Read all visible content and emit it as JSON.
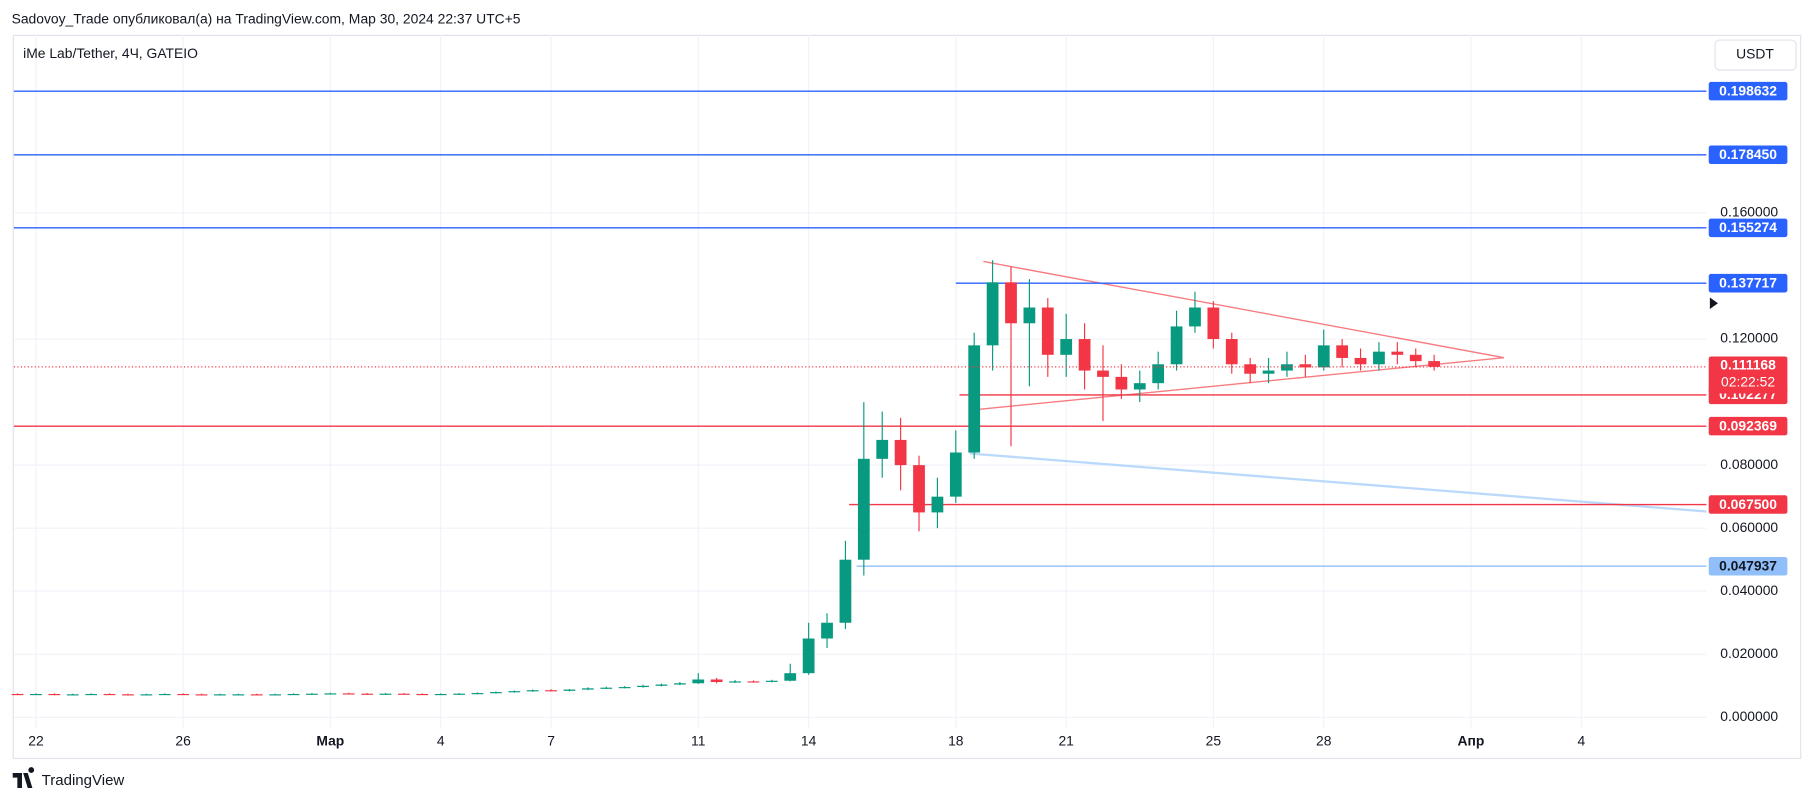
{
  "header": {
    "text": "Sadovoy_Trade опубликовал(а) на TradingView.com, Мар 30, 2024 22:37 UTC+5"
  },
  "footer": {
    "brand": "TradingView"
  },
  "chart_data": {
    "type": "candlestick",
    "symbol": "iMe Lab/Tether, 4Ч, GATEIO",
    "currency": "USDT",
    "up_color": "#089981",
    "down_color": "#f23645",
    "grid": true,
    "xlim": [
      -0.6,
      45.4
    ],
    "ylim": [
      -0.0037,
      0.2165
    ],
    "xticks": [
      {
        "value": 0,
        "label": "22"
      },
      {
        "value": 4,
        "label": "26"
      },
      {
        "value": 8,
        "label": "Мар"
      },
      {
        "value": 11,
        "label": "4"
      },
      {
        "value": 14,
        "label": "7"
      },
      {
        "value": 18,
        "label": "11"
      },
      {
        "value": 21,
        "label": "14"
      },
      {
        "value": 25,
        "label": "18"
      },
      {
        "value": 28,
        "label": "21"
      },
      {
        "value": 32,
        "label": "25"
      },
      {
        "value": 35,
        "label": "28"
      },
      {
        "value": 39,
        "label": "Апр"
      },
      {
        "value": 42,
        "label": "4"
      }
    ],
    "yticks": [
      {
        "value": 0,
        "label": "0.000000"
      },
      {
        "value": 0.02,
        "label": "0.020000"
      },
      {
        "value": 0.04,
        "label": "0.040000"
      },
      {
        "value": 0.06,
        "label": "0.060000"
      },
      {
        "value": 0.08,
        "label": "0.080000"
      },
      {
        "value": 0.12,
        "label": "0.120000"
      },
      {
        "value": 0.16,
        "label": "0.160000"
      }
    ],
    "x": [
      -0.5,
      0,
      0.5,
      1,
      1.5,
      2,
      2.5,
      3,
      3.5,
      4,
      4.5,
      5,
      5.5,
      6,
      6.5,
      7,
      7.5,
      8,
      8.5,
      9,
      9.5,
      10,
      10.5,
      11,
      11.5,
      12,
      12.5,
      13,
      13.5,
      14,
      14.5,
      15,
      15.5,
      16,
      16.5,
      17,
      17.5,
      18,
      18.5,
      19,
      19.5,
      20,
      20.5,
      21,
      21.5,
      22,
      22.5,
      23,
      23.5,
      24,
      24.5,
      25,
      25.5,
      26,
      26.5,
      27,
      27.5,
      28,
      28.5,
      29,
      29.5,
      30,
      30.5,
      31,
      31.5,
      32,
      32.5,
      33,
      33.5,
      34,
      34.5,
      35,
      35.5,
      36,
      36.5,
      37,
      37.5,
      38
    ],
    "open": [
      0.0074,
      0.0073,
      0.0074,
      0.0072,
      0.0073,
      0.0074,
      0.0073,
      0.0072,
      0.0073,
      0.0074,
      0.0073,
      0.0072,
      0.0073,
      0.0073,
      0.0072,
      0.0073,
      0.0074,
      0.0075,
      0.0076,
      0.0075,
      0.0074,
      0.0075,
      0.0074,
      0.0073,
      0.0074,
      0.0075,
      0.0077,
      0.008,
      0.0083,
      0.0086,
      0.0084,
      0.0088,
      0.0092,
      0.0094,
      0.0096,
      0.01,
      0.0104,
      0.0108,
      0.012,
      0.0112,
      0.0114,
      0.0113,
      0.0116,
      0.014,
      0.025,
      0.03,
      0.05,
      0.082,
      0.088,
      0.08,
      0.065,
      0.07,
      0.084,
      0.118,
      0.138,
      0.125,
      0.13,
      0.115,
      0.12,
      0.11,
      0.108,
      0.104,
      0.106,
      0.112,
      0.124,
      0.13,
      0.12,
      0.112,
      0.109,
      0.11,
      0.112,
      0.111,
      0.118,
      0.114,
      0.112,
      0.116,
      0.115,
      0.113
    ],
    "high": [
      0.0076,
      0.0076,
      0.0076,
      0.0075,
      0.0076,
      0.0076,
      0.0075,
      0.0075,
      0.0076,
      0.0076,
      0.0075,
      0.0075,
      0.0075,
      0.0075,
      0.0075,
      0.0076,
      0.0077,
      0.0078,
      0.0078,
      0.0077,
      0.0077,
      0.0077,
      0.0076,
      0.0076,
      0.0077,
      0.0079,
      0.0082,
      0.0085,
      0.0088,
      0.0089,
      0.009,
      0.0095,
      0.0097,
      0.0099,
      0.0103,
      0.0107,
      0.0112,
      0.014,
      0.0125,
      0.0118,
      0.0117,
      0.0119,
      0.017,
      0.03,
      0.033,
      0.056,
      0.1,
      0.097,
      0.095,
      0.083,
      0.076,
      0.091,
      0.122,
      0.145,
      0.143,
      0.139,
      0.133,
      0.128,
      0.125,
      0.118,
      0.112,
      0.11,
      0.116,
      0.129,
      0.135,
      0.132,
      0.122,
      0.114,
      0.114,
      0.116,
      0.115,
      0.123,
      0.12,
      0.117,
      0.119,
      0.119,
      0.117,
      0.115
    ],
    "low": [
      0.0071,
      0.0071,
      0.007,
      0.007,
      0.0071,
      0.0071,
      0.007,
      0.007,
      0.0071,
      0.0071,
      0.007,
      0.007,
      0.0071,
      0.007,
      0.007,
      0.0071,
      0.0072,
      0.0073,
      0.0073,
      0.0072,
      0.0072,
      0.0072,
      0.0071,
      0.0071,
      0.0072,
      0.0073,
      0.0075,
      0.0078,
      0.0081,
      0.0082,
      0.0082,
      0.0086,
      0.009,
      0.0092,
      0.0094,
      0.0098,
      0.0102,
      0.0106,
      0.0108,
      0.0109,
      0.011,
      0.0111,
      0.0114,
      0.0135,
      0.022,
      0.028,
      0.045,
      0.076,
      0.072,
      0.059,
      0.06,
      0.068,
      0.082,
      0.11,
      0.086,
      0.105,
      0.108,
      0.108,
      0.104,
      0.094,
      0.101,
      0.1,
      0.104,
      0.11,
      0.122,
      0.117,
      0.109,
      0.106,
      0.106,
      0.108,
      0.108,
      0.11,
      0.111,
      0.11,
      0.11,
      0.112,
      0.111,
      0.11
    ],
    "close": [
      0.0073,
      0.0074,
      0.0072,
      0.0073,
      0.0074,
      0.0073,
      0.0072,
      0.0073,
      0.0074,
      0.0073,
      0.0072,
      0.0073,
      0.0073,
      0.0072,
      0.0073,
      0.0074,
      0.0075,
      0.0076,
      0.0075,
      0.0074,
      0.0075,
      0.0074,
      0.0073,
      0.0074,
      0.0075,
      0.0077,
      0.008,
      0.0083,
      0.0086,
      0.0084,
      0.0088,
      0.0092,
      0.0094,
      0.0096,
      0.01,
      0.0104,
      0.0108,
      0.012,
      0.0112,
      0.0114,
      0.0113,
      0.0116,
      0.014,
      0.025,
      0.03,
      0.05,
      0.082,
      0.088,
      0.08,
      0.065,
      0.07,
      0.084,
      0.118,
      0.138,
      0.125,
      0.13,
      0.115,
      0.12,
      0.11,
      0.108,
      0.104,
      0.106,
      0.112,
      0.124,
      0.13,
      0.12,
      0.112,
      0.109,
      0.11,
      0.112,
      0.111,
      0.118,
      0.114,
      0.112,
      0.116,
      0.115,
      0.113,
      0.111168
    ],
    "levels": [
      {
        "value": 0.198632,
        "label": "0.198632",
        "color": "#2962ff"
      },
      {
        "value": 0.17845,
        "label": "0.178450",
        "color": "#2962ff"
      },
      {
        "value": 0.155274,
        "label": "0.155274",
        "color": "#2962ff"
      },
      {
        "value": 0.137717,
        "label": "0.137717",
        "color": "#2962ff",
        "x_start": 25
      },
      {
        "value": 0.102277,
        "label": "0.102277",
        "color": "#f23645",
        "x_start": 25.1
      },
      {
        "value": 0.092369,
        "label": "0.092369",
        "color": "#f23645"
      },
      {
        "value": 0.0675,
        "label": "0.067500",
        "color": "#f23645",
        "x_start": 22.1
      },
      {
        "value": 0.047937,
        "label": "0.047937",
        "color": "#90bff9",
        "x_start": 22.3
      }
    ],
    "drawings": [
      {
        "color": "#f77c80",
        "points": [
          [
            25.75,
            0.1446
          ],
          [
            39.9,
            0.1141
          ]
        ]
      },
      {
        "color": "#f77c80",
        "points": [
          [
            25.53,
            0.0976
          ],
          [
            39.9,
            0.1141
          ]
        ]
      },
      {
        "color": "#bbd9fb",
        "points": [
          [
            25.38,
            0.0837
          ],
          [
            45.4,
            0.0653
          ]
        ]
      }
    ],
    "last_price": {
      "value": 0.111168,
      "label": "0.111168",
      "countdown": "02:22:52",
      "color": "#f23645"
    }
  }
}
